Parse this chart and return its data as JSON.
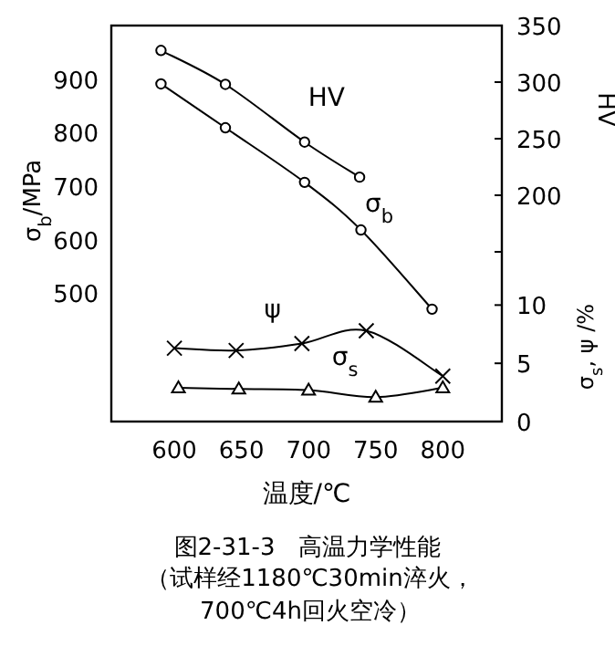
{
  "chart_data": {
    "type": "line",
    "title": "图2-31-3　高温力学性能",
    "subtitle": "（试样经1180℃30min淬火，700℃4h回火空冷）",
    "xlabel": "温度/℃",
    "ylabel": "σ$_{b}$/MPa",
    "y2label": "HV",
    "y3label": "σ$_{s}$, ψ /%",
    "xlim": [
      553,
      844
    ],
    "xticks": [
      600,
      650,
      700,
      750,
      800
    ],
    "ylim": [
      260,
      1000
    ],
    "yticks": [
      500,
      600,
      700,
      800,
      900
    ],
    "y2lim": [
      0,
      350
    ],
    "y2ticks": [
      {
        "value": 150,
        "label": null
      },
      200,
      250,
      300,
      350
    ],
    "y3lim": [
      0,
      34
    ],
    "y3ticks": [
      0,
      5,
      10
    ],
    "grid": false,
    "series": [
      {
        "name": "HV",
        "axis": "y2",
        "color": "#000000",
        "marker": "circle",
        "x": [
          590,
          638,
          697,
          738
        ],
        "values": [
          328,
          298,
          247,
          216
        ]
      },
      {
        "name": "σ$_{b}$",
        "axis": "y",
        "color": "#000000",
        "marker": "circle",
        "x": [
          590,
          638,
          697,
          739,
          792
        ],
        "values": [
          891,
          809,
          707,
          618,
          470
        ]
      },
      {
        "name": "ψ",
        "axis": "y3",
        "color": "#000000",
        "marker": "cross",
        "x": [
          600,
          646,
          695,
          743,
          800
        ],
        "values": [
          6.3,
          6.1,
          6.7,
          7.8,
          3.9
        ]
      },
      {
        "name": "σ$_{s}$",
        "axis": "y3",
        "color": "#000000",
        "marker": "triangle",
        "x": [
          603,
          648,
          700,
          750,
          800
        ],
        "values": [
          2.9,
          2.8,
          2.7,
          2.1,
          2.9
        ]
      }
    ]
  }
}
